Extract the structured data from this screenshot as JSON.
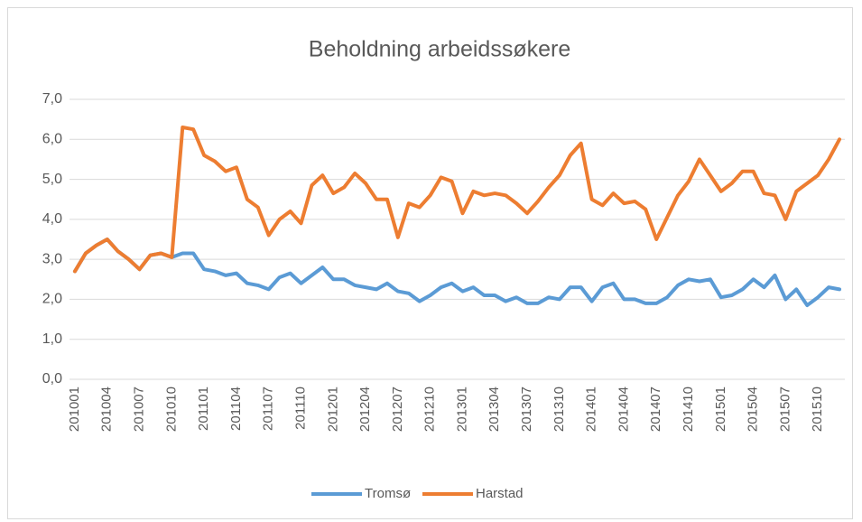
{
  "chart_data": {
    "type": "line",
    "title": "Beholdning arbeidssøkere",
    "categories": [
      "201001",
      null,
      null,
      "201004",
      null,
      null,
      "201007",
      null,
      null,
      "201010",
      null,
      null,
      "201101",
      null,
      null,
      "201104",
      null,
      null,
      "201107",
      null,
      null,
      "201110",
      null,
      null,
      "201201",
      null,
      null,
      "201204",
      null,
      null,
      "201207",
      null,
      null,
      "201210",
      null,
      null,
      "201301",
      null,
      null,
      "201304",
      null,
      null,
      "201307",
      null,
      null,
      "201310",
      null,
      null,
      "201401",
      null,
      null,
      "201404",
      null,
      null,
      "201407",
      null,
      null,
      "201410",
      null,
      null,
      "201501",
      null,
      null,
      "201504",
      null,
      null,
      "201507",
      null,
      null,
      "201510",
      null,
      null
    ],
    "series": [
      {
        "name": "Tromsø",
        "color": "#5b9bd5",
        "values": [
          2.7,
          3.15,
          3.35,
          3.5,
          3.2,
          3.0,
          2.75,
          3.1,
          3.15,
          3.05,
          3.15,
          3.15,
          2.75,
          2.7,
          2.6,
          2.65,
          2.4,
          2.35,
          2.25,
          2.55,
          2.65,
          2.4,
          2.6,
          2.8,
          2.5,
          2.5,
          2.35,
          2.3,
          2.25,
          2.4,
          2.2,
          2.15,
          1.95,
          2.1,
          2.3,
          2.4,
          2.2,
          2.3,
          2.1,
          2.1,
          1.95,
          2.05,
          1.9,
          1.9,
          2.05,
          2.0,
          2.3,
          2.3,
          1.95,
          2.3,
          2.4,
          2.0,
          2.0,
          1.9,
          1.9,
          2.05,
          2.35,
          2.5,
          2.45,
          2.5,
          2.05,
          2.1,
          2.25,
          2.5,
          2.3,
          2.6,
          2.0,
          2.25,
          1.85,
          2.05,
          2.3,
          2.25
        ]
      },
      {
        "name": "Harstad",
        "color": "#ed7d31",
        "values": [
          2.7,
          3.15,
          3.35,
          3.5,
          3.2,
          3.0,
          2.75,
          3.1,
          3.15,
          3.05,
          6.3,
          6.25,
          5.6,
          5.45,
          5.2,
          5.3,
          4.5,
          4.3,
          3.6,
          4.0,
          4.2,
          3.9,
          4.85,
          5.1,
          4.65,
          4.8,
          5.15,
          4.9,
          4.5,
          4.5,
          3.55,
          4.4,
          4.3,
          4.6,
          5.05,
          4.95,
          4.15,
          4.7,
          4.6,
          4.65,
          4.6,
          4.4,
          4.15,
          4.45,
          4.8,
          5.1,
          5.6,
          5.9,
          4.5,
          4.35,
          4.65,
          4.4,
          4.45,
          4.25,
          3.5,
          4.05,
          4.6,
          4.95,
          5.5,
          5.1,
          4.7,
          4.9,
          5.2,
          5.2,
          4.65,
          4.6,
          4.0,
          4.7,
          4.9,
          5.1,
          5.5,
          6.0
        ]
      }
    ],
    "ylim": [
      0,
      7
    ],
    "yticks": [
      {
        "value": 0,
        "label": "0,0"
      },
      {
        "value": 1,
        "label": "1,0"
      },
      {
        "value": 2,
        "label": "2,0"
      },
      {
        "value": 3,
        "label": "3,0"
      },
      {
        "value": 4,
        "label": "4,0"
      },
      {
        "value": 5,
        "label": "5,0"
      },
      {
        "value": 6,
        "label": "6,0"
      },
      {
        "value": 7,
        "label": "7,0"
      }
    ],
    "grid": true,
    "legend": "bottom"
  }
}
